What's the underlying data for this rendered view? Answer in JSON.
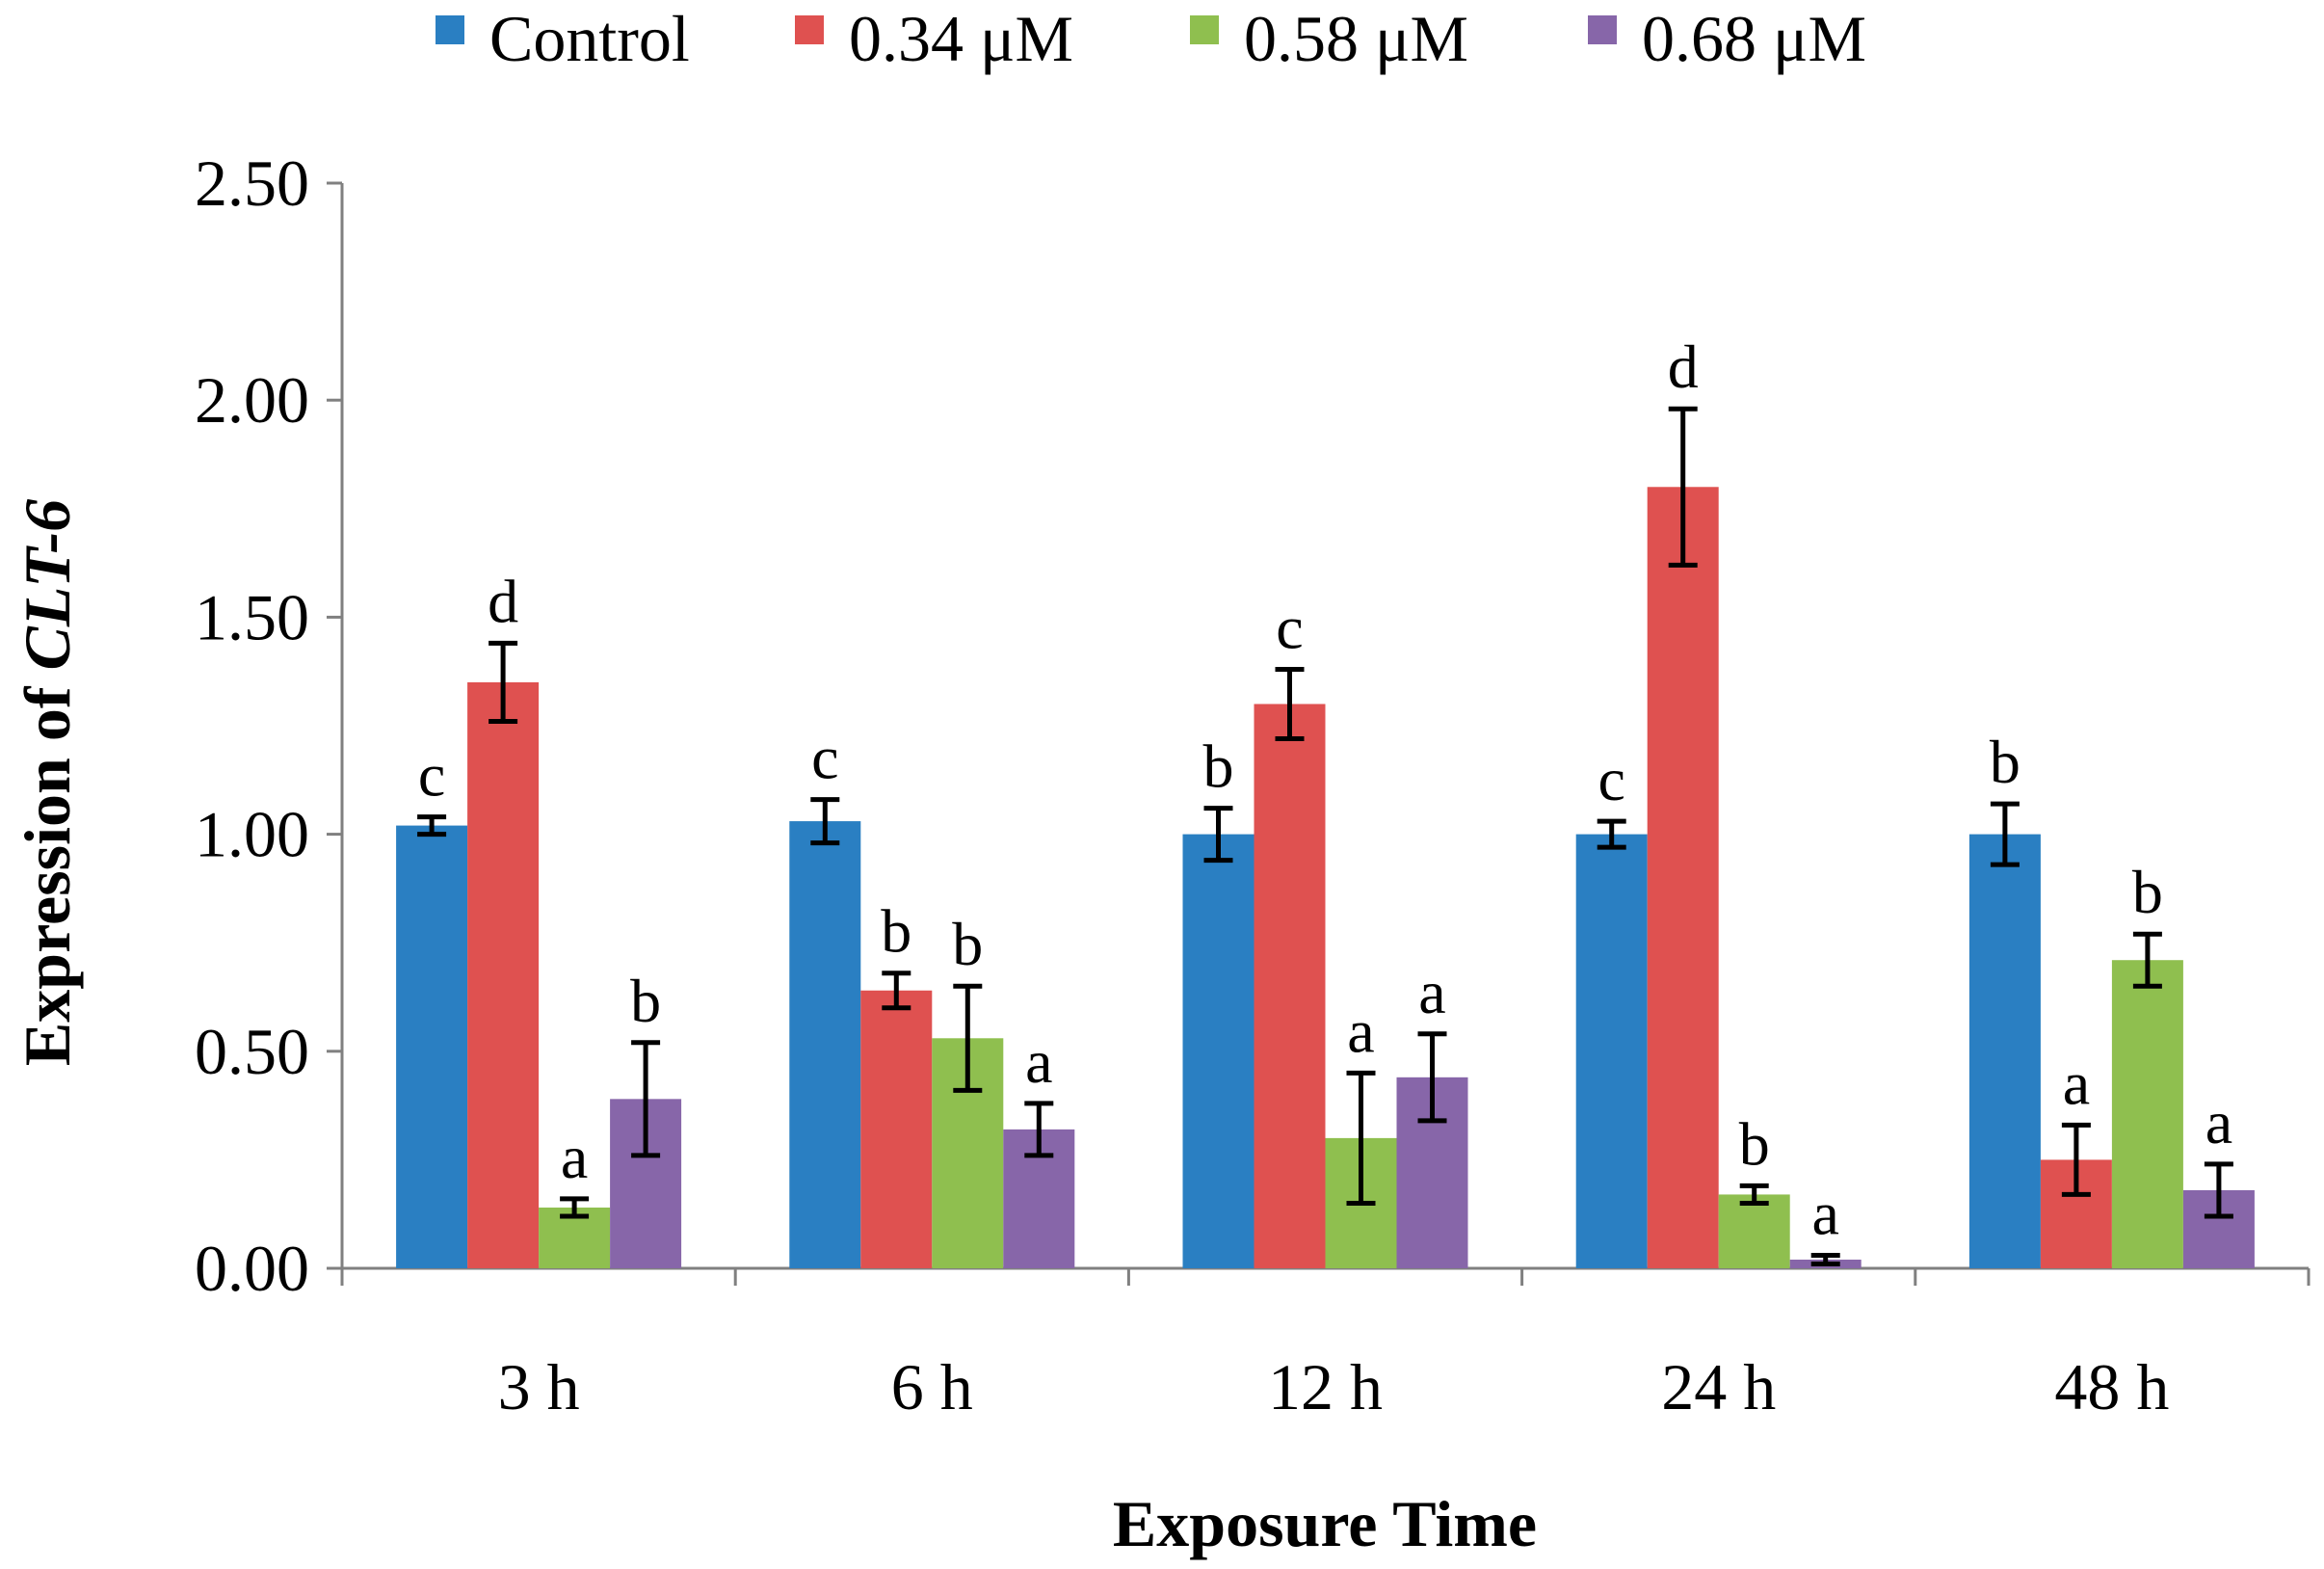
{
  "chart_data": {
    "type": "bar",
    "title": "",
    "xlabel": "Exposure Time",
    "ylabel_prefix": "Expression of ",
    "ylabel_gene": "CLT-6",
    "ylim": [
      0,
      2.5
    ],
    "yticks": [
      "0.00",
      "0.50",
      "1.00",
      "1.50",
      "2.00",
      "2.50"
    ],
    "ytick_values": [
      0,
      0.5,
      1.0,
      1.5,
      2.0,
      2.5
    ],
    "categories": [
      "3 h",
      "6 h",
      "12 h",
      "24 h",
      "48 h"
    ],
    "legend_position": "top",
    "grid": false,
    "series": [
      {
        "name": "Control",
        "color": "#2a7fc2",
        "values": [
          1.02,
          1.03,
          1.0,
          1.0,
          1.0
        ],
        "errors": [
          0.02,
          0.05,
          0.06,
          0.03,
          0.07
        ],
        "labels": [
          "c",
          "c",
          "b",
          "c",
          "b"
        ]
      },
      {
        "name": "0.34 μM",
        "color": "#df5150",
        "values": [
          1.35,
          0.64,
          1.3,
          1.8,
          0.25
        ],
        "errors": [
          0.09,
          0.04,
          0.08,
          0.18,
          0.08
        ],
        "labels": [
          "d",
          "b",
          "c",
          "d",
          "a"
        ]
      },
      {
        "name": "0.58 μM",
        "color": "#8fbf4f",
        "values": [
          0.14,
          0.53,
          0.3,
          0.17,
          0.71
        ],
        "errors": [
          0.02,
          0.12,
          0.15,
          0.02,
          0.06
        ],
        "labels": [
          "a",
          "b",
          "a",
          "b",
          "b"
        ]
      },
      {
        "name": "0.68 μM",
        "color": "#8766a9",
        "values": [
          0.39,
          0.32,
          0.44,
          0.02,
          0.18
        ],
        "errors": [
          0.13,
          0.06,
          0.1,
          0.01,
          0.06
        ],
        "labels": [
          "b",
          "a",
          "a",
          "a",
          "a"
        ]
      }
    ]
  }
}
